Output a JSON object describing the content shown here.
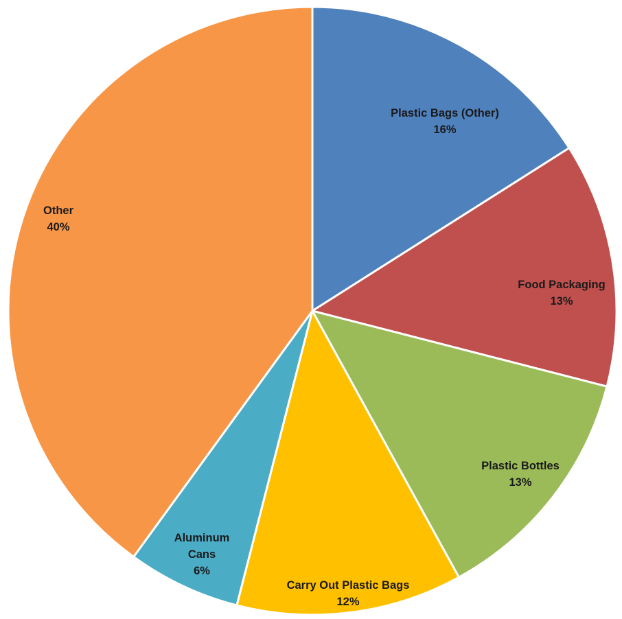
{
  "chart_data": {
    "type": "pie",
    "title": "",
    "slices": [
      {
        "label": "Plastic Bags (Other)",
        "label_lines": [
          "Plastic Bags (Other)"
        ],
        "value": 16,
        "display": "16%",
        "color": "#4F81BD"
      },
      {
        "label": "Food Packaging",
        "label_lines": [
          "Food Packaging"
        ],
        "value": 13,
        "display": "13%",
        "color": "#C0504D"
      },
      {
        "label": "Plastic Bottles",
        "label_lines": [
          "Plastic Bottles"
        ],
        "value": 13,
        "display": "13%",
        "color": "#9BBB59"
      },
      {
        "label": "Carry Out Plastic Bags",
        "label_lines": [
          "Carry Out Plastic Bags"
        ],
        "value": 12,
        "display": "12%",
        "color": "#FFC000"
      },
      {
        "label": "Aluminum Cans",
        "label_lines": [
          "Aluminum",
          "Cans"
        ],
        "value": 6,
        "display": "6%",
        "color": "#4BACC6"
      },
      {
        "label": "Other",
        "label_lines": [
          "Other"
        ],
        "value": 40,
        "display": "40%",
        "color": "#F79646"
      }
    ],
    "legend": "none",
    "start": "top, clockwise"
  }
}
